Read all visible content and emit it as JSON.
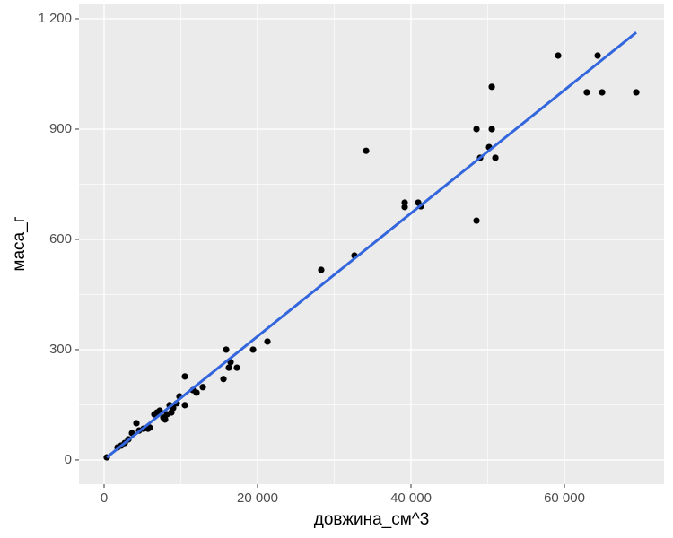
{
  "chart_data": {
    "type": "scatter",
    "x_label": "довжина_см^3",
    "y_label": "маса_г",
    "xlim": [
      -3275,
      72980
    ],
    "ylim": [
      -66,
      1239
    ],
    "xticks": [
      0,
      {
        "value": 20000,
        "label": "20 000"
      },
      {
        "value": 40000,
        "label": "40 000"
      },
      {
        "value": 60000,
        "label": "60 000"
      }
    ],
    "yticks": [
      0,
      300,
      600,
      900,
      {
        "value": 1200,
        "label": "1 200"
      }
    ],
    "grid": true,
    "series": [
      {
        "color": "#000000",
        "x": [
          350,
          1750,
          2220,
          2690,
          3160,
          3630,
          4210,
          4560,
          5150,
          5730,
          5960,
          6550,
          6900,
          7250,
          7720,
          7950,
          8190,
          8540,
          8770,
          9000,
          9470,
          9820,
          10530,
          10530,
          11580,
          12050,
          12870,
          15560,
          15910,
          16260,
          16490,
          17310,
          19420,
          21290,
          28300,
          32630,
          34150,
          39180,
          39180,
          40940,
          41290,
          48540,
          48540,
          49010,
          50180,
          50530,
          50530,
          51000,
          59180,
          62920,
          64330,
          64910,
          69360
        ],
        "values": [
          7,
          34,
          39,
          46,
          56,
          73,
          100,
          80,
          85,
          85,
          88,
          124,
          129,
          134,
          115,
          110,
          124,
          149,
          129,
          141,
          154,
          173,
          227,
          149,
          190,
          183,
          198,
          220,
          300,
          251,
          266,
          251,
          300,
          322,
          517,
          556,
          841,
          700,
          688,
          700,
          690,
          900,
          651,
          822,
          851,
          1015,
          900,
          822,
          1100,
          1000,
          1100,
          1000,
          1000
        ]
      }
    ],
    "fit": {
      "type": "line",
      "color": "#3366dd",
      "x": [
        350,
        69360
      ],
      "values": [
        7,
        1163
      ]
    }
  }
}
